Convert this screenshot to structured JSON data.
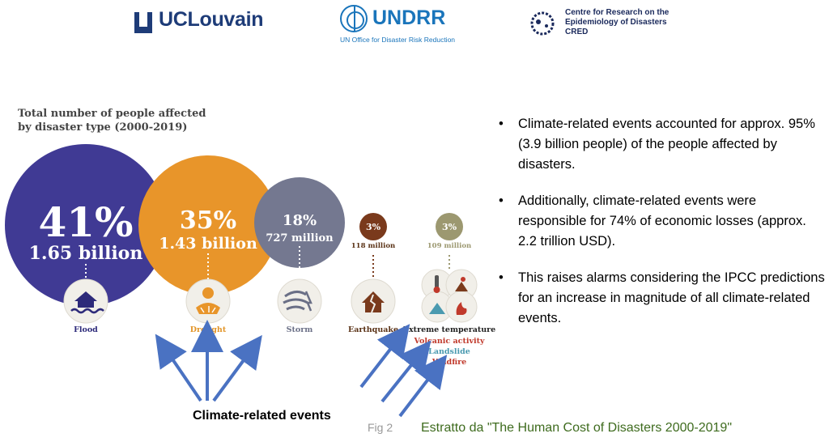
{
  "logos": {
    "ucl": "UCLouvain",
    "undrr": "UNDRR",
    "undrr_sub": "UN Office for Disaster Risk Reduction",
    "cred_lines": [
      "Centre for Research on the",
      "Epidemiology of Disasters",
      "CRED"
    ]
  },
  "chart_data": {
    "type": "bubble",
    "title": "Total number of people affected by disaster type (2000-2019)",
    "title_lines": [
      "Total number of people affected",
      "by disaster type (2000-2019)"
    ],
    "series": [
      {
        "label": "Flood",
        "percent": 41,
        "percent_label": "41%",
        "people_label": "1.65 billion",
        "people_billion": 1.65,
        "color": "#403a94",
        "label_color": "#2d2a7a",
        "icon": "flood-house-icon"
      },
      {
        "label": "Drought",
        "percent": 35,
        "percent_label": "35%",
        "people_label": "1.43 billion",
        "people_billion": 1.43,
        "color": "#e8952a",
        "label_color": "#e29427",
        "icon": "drought-sun-icon"
      },
      {
        "label": "Storm",
        "percent": 18,
        "percent_label": "18%",
        "people_label": "727 million",
        "people_billion": 0.727,
        "color": "#747890",
        "label_color": "#6a6f86",
        "icon": "storm-wind-icon"
      },
      {
        "label": "Earthquake",
        "percent": 3,
        "percent_label": "3%",
        "people_label": "118 million",
        "people_billion": 0.118,
        "color": "#7a3a1c",
        "label_color": "#5a3216",
        "icon": "earthquake-house-icon"
      },
      {
        "label": "Extreme temperature",
        "percent": 3,
        "percent_label": "3%",
        "people_label": "109 million",
        "people_billion": 0.109,
        "color": "#9c9870",
        "label_color": "#222222",
        "icon": "multi-hazard-icons"
      }
    ],
    "other_labels": [
      {
        "text": "Volcanic activity",
        "color": "#c0392b"
      },
      {
        "text": "Landslide",
        "color": "#4a9ab0"
      },
      {
        "text": "Wildfire",
        "color": "#c0392b"
      }
    ]
  },
  "bullets": [
    "Climate-related events accounted for approx. 95% (3.9 billion people) of the people affected by disasters.",
    "Additionally, climate-related events were responsible for 74% of economic losses (approx. 2.2 trillion USD).",
    "This raises alarms considering the IPCC predictions for an increase in magnitude of all climate-related events."
  ],
  "climate_label": "Climate-related events",
  "fig_label": "Fig 2",
  "source_label": "Estratto da  \"The Human Cost of Disasters 2000-2019\"",
  "colors": {
    "arrow": "#4a72c2",
    "dotted": "#ffffff"
  }
}
